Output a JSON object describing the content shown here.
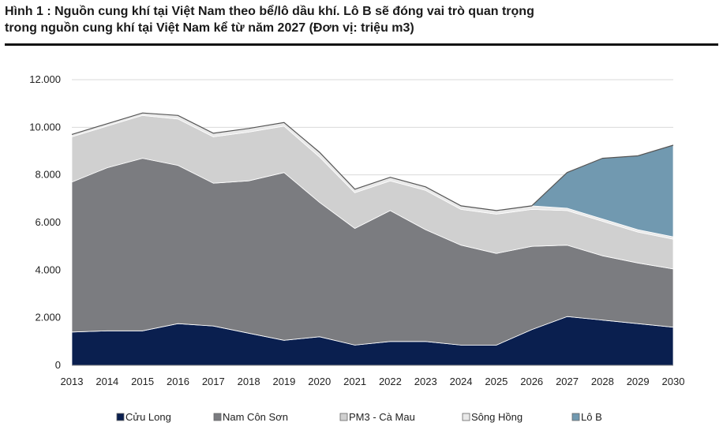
{
  "title_line1": "Hình 1 : Nguồn cung khí tại Việt Nam theo bể/lô dầu khí. Lô B sẽ đóng vai trò quan trọng",
  "title_line2": "trong nguồn cung khí tại Việt Nam kể từ năm 2027 (Đơn vị: triệu m3)",
  "chart_data": {
    "type": "area",
    "stacked": true,
    "x": [
      "2013",
      "2014",
      "2015",
      "2016",
      "2017",
      "2018",
      "2019",
      "2020",
      "2021",
      "2022",
      "2023",
      "2024",
      "2025",
      "2026",
      "2027",
      "2028",
      "2029",
      "2030"
    ],
    "y_ticks": [
      "0",
      "2.000",
      "4.000",
      "6.000",
      "8.000",
      "10.000",
      "12.000"
    ],
    "ylim": [
      0,
      12000
    ],
    "grid": true,
    "legend_position": "bottom",
    "series": [
      {
        "name": "Cửu Long",
        "color": "#0a1f4f",
        "values": [
          1400,
          1450,
          1450,
          1750,
          1650,
          1350,
          1050,
          1200,
          850,
          1000,
          1000,
          850,
          850,
          1500,
          2050,
          1900,
          1750,
          1600
        ]
      },
      {
        "name": "Nam Côn Sơn",
        "color": "#7b7c80",
        "values": [
          6300,
          6850,
          7250,
          6650,
          6000,
          6400,
          7050,
          5650,
          4900,
          5500,
          4700,
          4200,
          3850,
          3500,
          3000,
          2700,
          2550,
          2450
        ]
      },
      {
        "name": "PM3 - Cà Mau",
        "color": "#d0d0d0",
        "values": [
          1900,
          1750,
          1800,
          1950,
          1950,
          2050,
          1950,
          1900,
          1500,
          1250,
          1650,
          1500,
          1650,
          1550,
          1450,
          1450,
          1300,
          1250
        ]
      },
      {
        "name": "Sông Hồng",
        "color": "#e9e9e9",
        "values": [
          100,
          100,
          100,
          150,
          150,
          150,
          150,
          200,
          150,
          150,
          150,
          150,
          150,
          150,
          100,
          100,
          100,
          100
        ]
      },
      {
        "name": "Lô B",
        "color": "#7199b0",
        "values": [
          0,
          0,
          0,
          0,
          0,
          0,
          0,
          0,
          0,
          0,
          0,
          0,
          0,
          0,
          1500,
          2550,
          3100,
          3850
        ]
      }
    ]
  }
}
